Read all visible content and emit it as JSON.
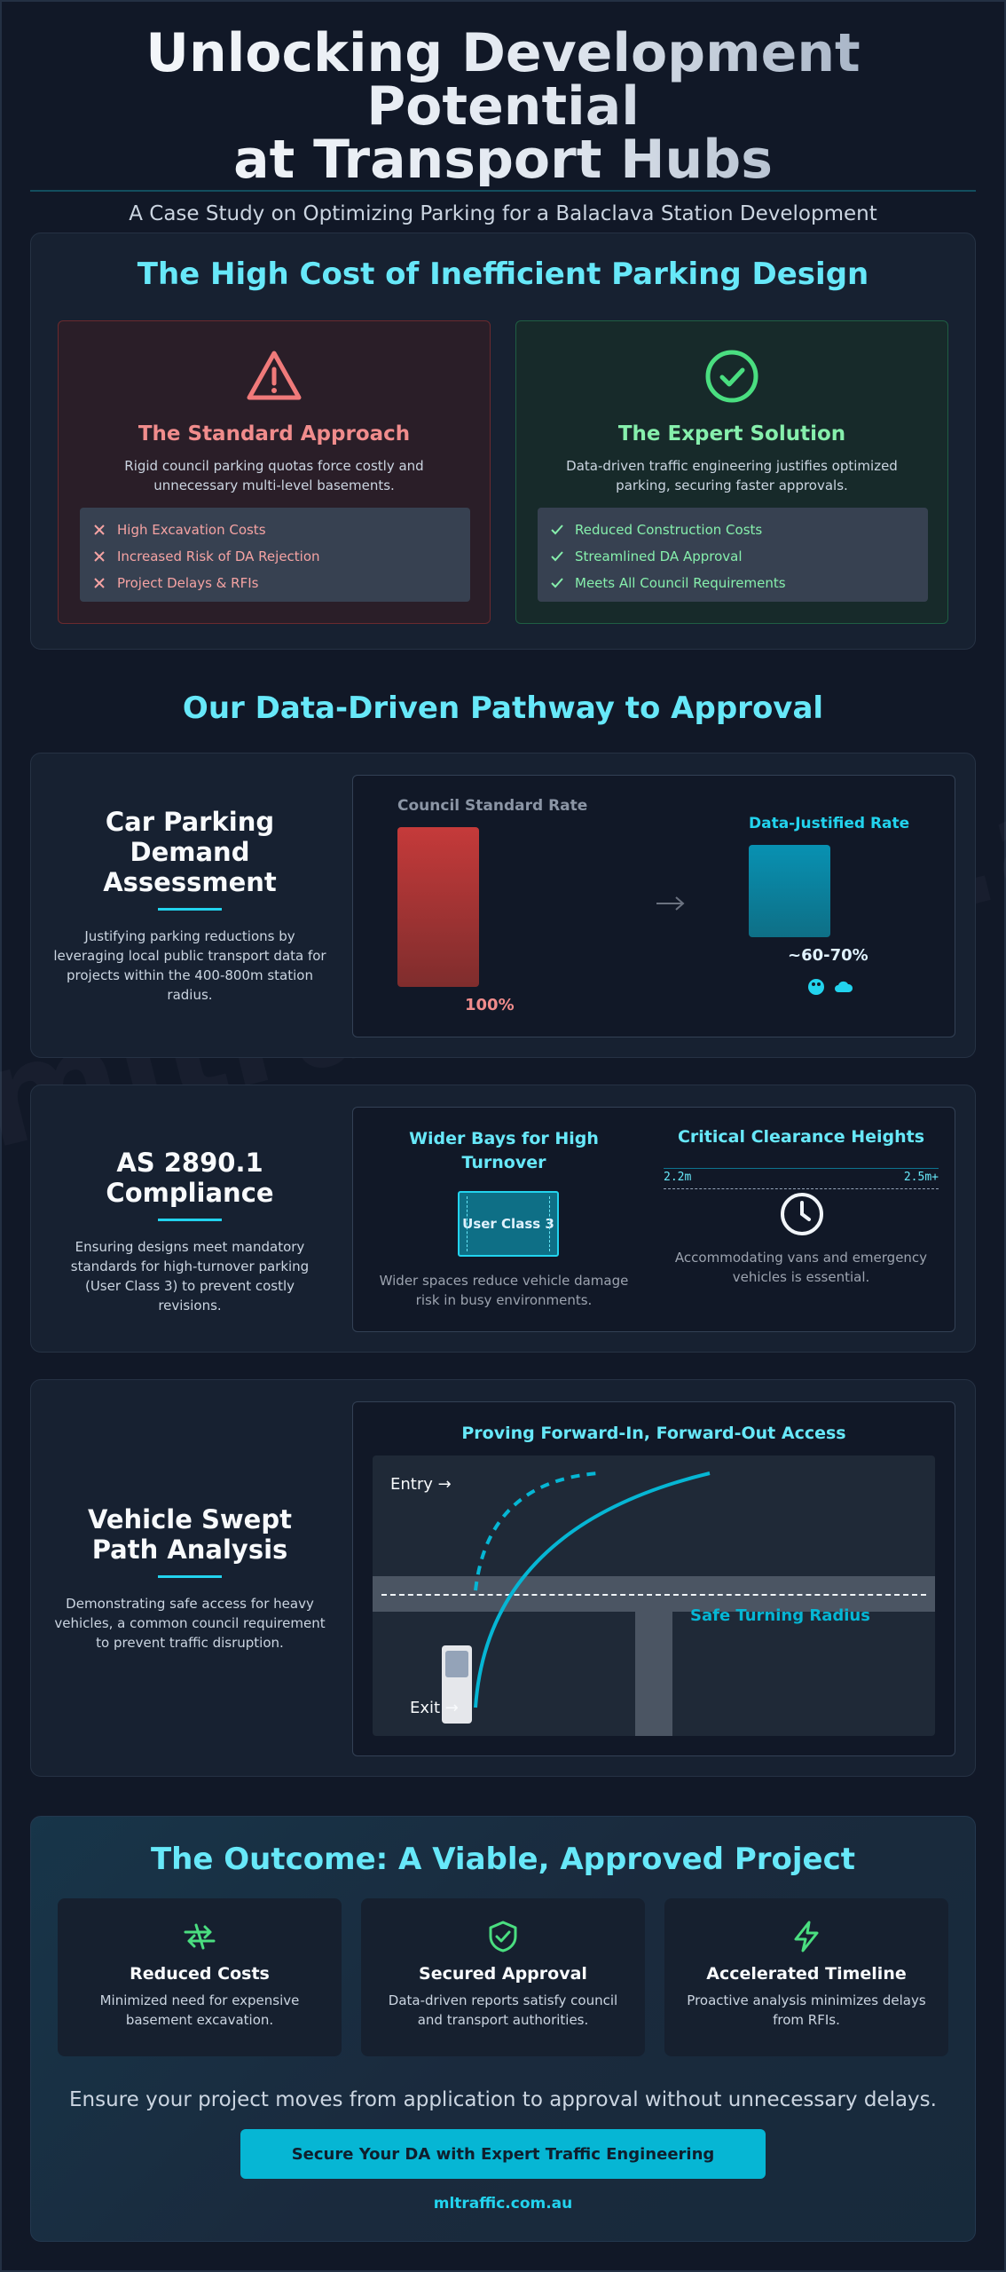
{
  "hero": {
    "title_line1": "Unlocking Development Potential",
    "title_line2": "at Transport Hubs",
    "subtitle": "A Case Study on Optimizing Parking for a Balaclava Station Development"
  },
  "watermark": "mltraffic.com.au",
  "cost_section": {
    "title": "The High Cost of Inefficient Parking Design",
    "standard": {
      "icon": "warning-triangle-icon",
      "title": "The Standard Approach",
      "description": "Rigid council parking quotas force costly and unnecessary multi-level basements.",
      "items": [
        "High Excavation Costs",
        "Increased Risk of DA Rejection",
        "Project Delays & RFIs"
      ]
    },
    "expert": {
      "icon": "check-circle-icon",
      "title": "The Expert Solution",
      "description": "Data-driven traffic engineering justifies optimized parking, securing faster approvals.",
      "items": [
        "Reduced Construction Costs",
        "Streamlined DA Approval",
        "Meets All Council Requirements"
      ]
    }
  },
  "pathway": {
    "title": "Our Data-Driven Pathway to Approval"
  },
  "demand": {
    "title": "Car Parking Demand Assessment",
    "description": "Justifying parking reductions by leveraging local public transport data for projects within the 400-800m station radius.",
    "council_label": "Council Standard Rate",
    "council_value": "100%",
    "justified_label": "Data-Justified Rate",
    "justified_value": "~60-70%",
    "council_fraction": 1.0,
    "justified_fraction": 0.58
  },
  "compliance": {
    "title": "AS 2890.1 Compliance",
    "description": "Ensuring designs meet mandatory standards for high-turnover parking (User Class 3) to prevent costly revisions.",
    "bays_title": "Wider Bays for High Turnover",
    "bay_label": "User Class 3",
    "bays_caption": "Wider spaces reduce vehicle damage risk in busy environments.",
    "clearance_title": "Critical Clearance Heights",
    "clearance_min": "2.2m",
    "clearance_max": "2.5m+",
    "clearance_caption": "Accommodating vans and emergency vehicles is essential."
  },
  "swept": {
    "title": "Vehicle Swept Path Analysis",
    "description": "Demonstrating safe access for heavy vehicles, a common council requirement to prevent traffic disruption.",
    "diagram_title": "Proving Forward-In, Forward-Out Access",
    "entry_label": "Entry →",
    "exit_label": "Exit →",
    "radius_label": "Safe Turning Radius"
  },
  "outcome": {
    "title": "The Outcome: A Viable, Approved Project",
    "cards": [
      {
        "icon": "exchange-arrows-icon",
        "title": "Reduced Costs",
        "text": "Minimized need for expensive basement excavation."
      },
      {
        "icon": "shield-check-icon",
        "title": "Secured Approval",
        "text": "Data-driven reports satisfy council and transport authorities."
      },
      {
        "icon": "lightning-icon",
        "title": "Accelerated Timeline",
        "text": "Proactive analysis minimizes delays from RFIs."
      }
    ],
    "tagline": "Ensure your project moves from application to approval without unnecessary delays.",
    "cta": "Secure Your DA with Expert Traffic Engineering",
    "website": "mltraffic.com.au"
  },
  "colors": {
    "accent": "#22d3ee",
    "danger": "#f08c8c",
    "success": "#86efac",
    "background": "#111827"
  }
}
